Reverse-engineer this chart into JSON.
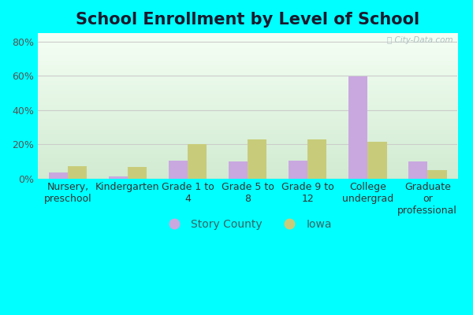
{
  "title": "School Enrollment by Level of School",
  "categories": [
    "Nursery,\npreschool",
    "Kindergarten",
    "Grade 1 to\n4",
    "Grade 5 to\n8",
    "Grade 9 to\n12",
    "College\nundergrad",
    "Graduate\nor\nprofessional"
  ],
  "story_county": [
    3.5,
    1.2,
    10.5,
    10.0,
    10.5,
    59.5,
    10.0
  ],
  "iowa": [
    7.0,
    6.5,
    20.0,
    23.0,
    23.0,
    21.5,
    5.0
  ],
  "story_county_color": "#c9a8e0",
  "iowa_color": "#c8cc7a",
  "ylim": [
    0,
    85
  ],
  "yticks": [
    0,
    20,
    40,
    60,
    80
  ],
  "ytick_labels": [
    "0%",
    "20%",
    "40%",
    "60%",
    "80%"
  ],
  "legend_story": "Story County",
  "legend_iowa": "Iowa",
  "title_fontsize": 15,
  "outer_bg_color": "#00ffff",
  "watermark": "City-Data.com"
}
